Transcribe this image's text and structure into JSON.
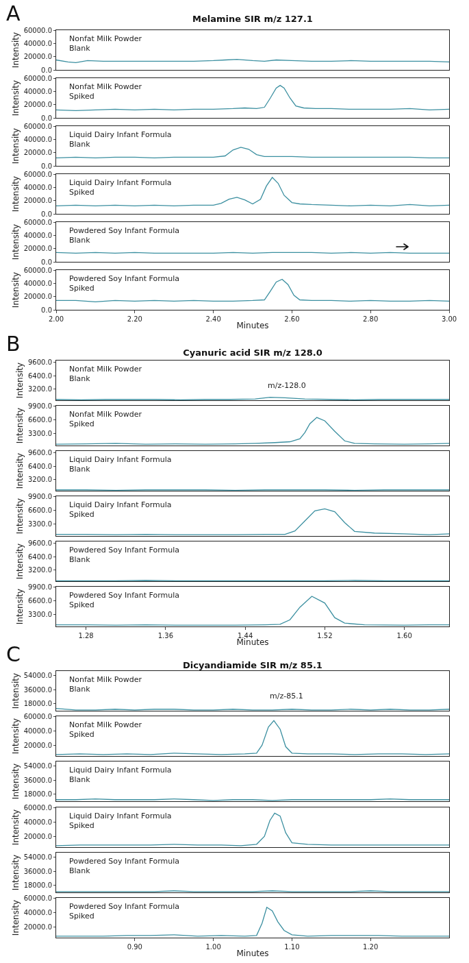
{
  "chart_data": [
    {
      "type": "line",
      "title": "Melamine SIR m/z 127.1",
      "ylabel": "Intensity",
      "annotations": [
        "A",
        "Nonfat Milk Powder\nBlank"
      ],
      "color": "#3b8fa0",
      "tick_labels": "y",
      "xlim": [
        2,
        3
      ],
      "ylim": [
        0,
        60000
      ],
      "yticks": [
        {
          "value": 0,
          "label": "0.0"
        },
        {
          "value": 20000,
          "label": "20000.0"
        },
        {
          "value": 40000,
          "label": "40000.0"
        },
        {
          "value": 60000,
          "label": "60000.0"
        }
      ],
      "x": [
        2.0,
        2.03,
        2.05,
        2.08,
        2.12,
        2.16,
        2.2,
        2.25,
        2.3,
        2.35,
        2.4,
        2.43,
        2.46,
        2.5,
        2.53,
        2.56,
        2.6,
        2.65,
        2.7,
        2.75,
        2.8,
        2.85,
        2.9,
        2.95,
        3.0
      ],
      "values": [
        15000,
        12000,
        11000,
        14000,
        13000,
        13000,
        13000,
        13000,
        13000,
        13000,
        14000,
        15000,
        16000,
        14000,
        13000,
        15000,
        14000,
        13000,
        13000,
        14000,
        13000,
        13000,
        13000,
        13000,
        12000
      ]
    },
    {
      "type": "line",
      "ylabel": "Intensity",
      "annotations": [
        "Nonfat Milk Powder\nSpiked"
      ],
      "color": "#3b8fa0",
      "tick_labels": "y",
      "xlim": [
        2,
        3
      ],
      "ylim": [
        0,
        60000
      ],
      "yticks": [
        {
          "value": 0,
          "label": "0.0"
        },
        {
          "value": 20000,
          "label": "20000.0"
        },
        {
          "value": 40000,
          "label": "40000.0"
        },
        {
          "value": 60000,
          "label": "60000.0"
        }
      ],
      "x": [
        2.0,
        2.05,
        2.1,
        2.15,
        2.2,
        2.25,
        2.3,
        2.35,
        2.4,
        2.45,
        2.48,
        2.51,
        2.53,
        2.545,
        2.56,
        2.57,
        2.58,
        2.595,
        2.61,
        2.63,
        2.66,
        2.7,
        2.75,
        2.8,
        2.85,
        2.9,
        2.95,
        3.0
      ],
      "values": [
        12000,
        11000,
        12000,
        13000,
        12000,
        13000,
        12000,
        13000,
        13000,
        14000,
        15000,
        14000,
        16000,
        30000,
        45000,
        49000,
        45000,
        30000,
        18000,
        15000,
        14000,
        14000,
        13000,
        13000,
        13000,
        14000,
        12000,
        13000
      ]
    },
    {
      "type": "line",
      "ylabel": "Intensity",
      "annotations": [
        "Liquid Dairy Infant Formula\nBlank"
      ],
      "color": "#3b8fa0",
      "tick_labels": "y",
      "xlim": [
        2,
        3
      ],
      "ylim": [
        0,
        60000
      ],
      "yticks": [
        {
          "value": 0,
          "label": "0.0"
        },
        {
          "value": 20000,
          "label": "20000.0"
        },
        {
          "value": 40000,
          "label": "40000.0"
        },
        {
          "value": 60000,
          "label": "60000.0"
        }
      ],
      "x": [
        2.0,
        2.05,
        2.1,
        2.15,
        2.2,
        2.25,
        2.3,
        2.35,
        2.4,
        2.43,
        2.45,
        2.47,
        2.49,
        2.51,
        2.53,
        2.56,
        2.6,
        2.65,
        2.7,
        2.75,
        2.8,
        2.85,
        2.9,
        2.95,
        3.0
      ],
      "values": [
        12000,
        13000,
        12000,
        13000,
        13000,
        12000,
        13000,
        13000,
        13000,
        15000,
        24000,
        28000,
        25000,
        17000,
        14000,
        14000,
        14000,
        13000,
        13000,
        13000,
        13000,
        13000,
        13000,
        12000,
        12000
      ]
    },
    {
      "type": "line",
      "ylabel": "Intensity",
      "annotations": [
        "Liquid Dairy Infant Formula\nSpiked"
      ],
      "color": "#3b8fa0",
      "tick_labels": "y",
      "xlim": [
        2,
        3
      ],
      "ylim": [
        0,
        60000
      ],
      "yticks": [
        {
          "value": 0,
          "label": "0.0"
        },
        {
          "value": 20000,
          "label": "20000.0"
        },
        {
          "value": 40000,
          "label": "40000.0"
        },
        {
          "value": 60000,
          "label": "60000.0"
        }
      ],
      "x": [
        2.0,
        2.05,
        2.1,
        2.15,
        2.2,
        2.25,
        2.3,
        2.35,
        2.4,
        2.42,
        2.44,
        2.46,
        2.48,
        2.5,
        2.52,
        2.535,
        2.55,
        2.565,
        2.58,
        2.6,
        2.62,
        2.65,
        2.7,
        2.75,
        2.8,
        2.85,
        2.9,
        2.95,
        3.0
      ],
      "values": [
        12000,
        13000,
        12000,
        13000,
        12000,
        13000,
        12000,
        13000,
        13000,
        16000,
        22000,
        25000,
        21000,
        15000,
        22000,
        42000,
        55000,
        46000,
        28000,
        17000,
        15000,
        14000,
        13000,
        12000,
        13000,
        12000,
        14000,
        12000,
        13000
      ]
    },
    {
      "type": "line",
      "ylabel": "Intensity",
      "annotations": [
        "Powdered Soy Infant Formula\nBlank"
      ],
      "color": "#3b8fa0",
      "tick_labels": "y",
      "xlim": [
        2,
        3
      ],
      "ylim": [
        0,
        60000
      ],
      "yticks": [
        {
          "value": 0,
          "label": "0.0"
        },
        {
          "value": 20000,
          "label": "20000.0"
        },
        {
          "value": 40000,
          "label": "40000.0"
        },
        {
          "value": 60000,
          "label": "60000.0"
        }
      ],
      "x": [
        2.0,
        2.05,
        2.1,
        2.15,
        2.2,
        2.25,
        2.3,
        2.35,
        2.4,
        2.45,
        2.5,
        2.55,
        2.6,
        2.65,
        2.7,
        2.75,
        2.8,
        2.85,
        2.9,
        2.95,
        3.0
      ],
      "values": [
        14000,
        13000,
        14000,
        13000,
        14000,
        13000,
        13000,
        13000,
        13000,
        14000,
        13000,
        14000,
        14000,
        14000,
        13000,
        14000,
        13000,
        14000,
        13000,
        13000,
        13000
      ]
    },
    {
      "type": "line",
      "xlabel": "Minutes",
      "ylabel": "Intensity",
      "annotations": [
        "Powdered Soy Infant Formula\nSpiked"
      ],
      "color": "#3b8fa0",
      "xlim": [
        2,
        3
      ],
      "xticks": [
        {
          "value": 2,
          "label": "2.00"
        },
        {
          "value": 2.2,
          "label": "2.20"
        },
        {
          "value": 2.4,
          "label": "2.40"
        },
        {
          "value": 2.6,
          "label": "2.60"
        },
        {
          "value": 2.8,
          "label": "2.80"
        },
        {
          "value": 3,
          "label": "3.00"
        }
      ],
      "ylim": [
        0,
        60000
      ],
      "yticks": [
        {
          "value": 0,
          "label": "0.0"
        },
        {
          "value": 20000,
          "label": "20000.0"
        },
        {
          "value": 40000,
          "label": "40000.0"
        },
        {
          "value": 60000,
          "label": "60000.0"
        }
      ],
      "x": [
        2.0,
        2.05,
        2.1,
        2.15,
        2.2,
        2.25,
        2.3,
        2.35,
        2.4,
        2.45,
        2.5,
        2.53,
        2.545,
        2.56,
        2.575,
        2.59,
        2.605,
        2.62,
        2.65,
        2.7,
        2.75,
        2.8,
        2.85,
        2.9,
        2.95,
        3.0
      ],
      "values": [
        14000,
        14000,
        12000,
        14000,
        13000,
        14000,
        13000,
        14000,
        13000,
        13000,
        14000,
        15000,
        28000,
        42000,
        46000,
        38000,
        22000,
        15000,
        14000,
        14000,
        13000,
        14000,
        13000,
        13000,
        14000,
        13000
      ]
    },
    {
      "type": "line",
      "title": "Cyanuric acid SIR m/z 128.0",
      "ylabel": "Intensity",
      "annotations": [
        "B",
        "Nonfat Milk Powder\nBlank",
        "m/z-128.0"
      ],
      "color": "#3b8fa0",
      "tick_labels": "y",
      "xlim": [
        1.25,
        1.645
      ],
      "ylim": [
        600,
        10000
      ],
      "yticks": [
        {
          "value": 3200,
          "label": "3200.0"
        },
        {
          "value": 6400,
          "label": "6400.0"
        },
        {
          "value": 9600,
          "label": "9600.0"
        }
      ],
      "x": [
        1.25,
        1.275,
        1.3,
        1.325,
        1.35,
        1.375,
        1.4,
        1.425,
        1.45,
        1.465,
        1.48,
        1.5,
        1.525,
        1.55,
        1.575,
        1.6,
        1.625,
        1.645
      ],
      "values": [
        800,
        700,
        800,
        800,
        800,
        700,
        800,
        800,
        900,
        1300,
        1200,
        900,
        800,
        700,
        800,
        800,
        800,
        800
      ]
    },
    {
      "type": "line",
      "ylabel": "Intensity",
      "annotations": [
        "Nonfat Milk Powder\nSpiked"
      ],
      "color": "#3b8fa0",
      "tick_labels": "y",
      "xlim": [
        1.25,
        1.645
      ],
      "ylim": [
        400,
        9900
      ],
      "yticks": [
        {
          "value": 3300,
          "label": "3300.0"
        },
        {
          "value": 6600,
          "label": "6600.0"
        },
        {
          "value": 9900,
          "label": "9900.0"
        }
      ],
      "x": [
        1.25,
        1.28,
        1.31,
        1.34,
        1.37,
        1.4,
        1.43,
        1.45,
        1.47,
        1.485,
        1.495,
        1.5,
        1.505,
        1.512,
        1.52,
        1.53,
        1.54,
        1.55,
        1.57,
        1.6,
        1.625,
        1.645
      ],
      "values": [
        700,
        800,
        900,
        700,
        800,
        700,
        800,
        900,
        1100,
        1300,
        2000,
        3500,
        5600,
        7100,
        6300,
        3800,
        1500,
        900,
        800,
        700,
        800,
        900
      ]
    },
    {
      "type": "line",
      "ylabel": "Intensity",
      "annotations": [
        "Liquid Dairy Infant Formula\nBlank"
      ],
      "color": "#3b8fa0",
      "tick_labels": "y",
      "xlim": [
        1.25,
        1.645
      ],
      "ylim": [
        600,
        10000
      ],
      "yticks": [
        {
          "value": 3200,
          "label": "3200.0"
        },
        {
          "value": 6400,
          "label": "6400.0"
        },
        {
          "value": 9600,
          "label": "9600.0"
        }
      ],
      "x": [
        1.25,
        1.28,
        1.31,
        1.34,
        1.37,
        1.4,
        1.43,
        1.46,
        1.49,
        1.52,
        1.55,
        1.58,
        1.61,
        1.645
      ],
      "values": [
        800,
        800,
        700,
        800,
        800,
        800,
        700,
        800,
        800,
        800,
        700,
        800,
        800,
        800
      ]
    },
    {
      "type": "line",
      "ylabel": "Intensity",
      "annotations": [
        "Liquid Dairy Infant Formula\nSpiked"
      ],
      "color": "#3b8fa0",
      "tick_labels": "y",
      "xlim": [
        1.25,
        1.645
      ],
      "ylim": [
        400,
        9900
      ],
      "yticks": [
        {
          "value": 3300,
          "label": "3300.0"
        },
        {
          "value": 6600,
          "label": "6600.0"
        },
        {
          "value": 9900,
          "label": "9900.0"
        }
      ],
      "x": [
        1.25,
        1.28,
        1.31,
        1.34,
        1.37,
        1.4,
        1.43,
        1.46,
        1.48,
        1.49,
        1.5,
        1.51,
        1.52,
        1.53,
        1.54,
        1.55,
        1.57,
        1.6,
        1.625,
        1.645
      ],
      "values": [
        800,
        800,
        700,
        800,
        700,
        700,
        700,
        800,
        800,
        1600,
        4000,
        6400,
        6900,
        6200,
        3600,
        1500,
        1100,
        900,
        700,
        900
      ]
    },
    {
      "type": "line",
      "ylabel": "Intensity",
      "annotations": [
        "Powdered Soy Infant Formula\nBlank"
      ],
      "color": "#3b8fa0",
      "tick_labels": "y",
      "xlim": [
        1.25,
        1.645
      ],
      "ylim": [
        600,
        10000
      ],
      "yticks": [
        {
          "value": 3200,
          "label": "3200.0"
        },
        {
          "value": 6400,
          "label": "6400.0"
        },
        {
          "value": 9600,
          "label": "9600.0"
        }
      ],
      "x": [
        1.25,
        1.28,
        1.31,
        1.34,
        1.37,
        1.4,
        1.43,
        1.46,
        1.49,
        1.52,
        1.55,
        1.58,
        1.61,
        1.645
      ],
      "values": [
        700,
        700,
        700,
        800,
        700,
        700,
        700,
        700,
        700,
        700,
        800,
        700,
        700,
        700
      ]
    },
    {
      "type": "line",
      "xlabel": "Minutes",
      "ylabel": "Intensity",
      "annotations": [
        "Powdered Soy Infant Formula\nSpiked"
      ],
      "color": "#3b8fa0",
      "xlim": [
        1.25,
        1.645
      ],
      "xticks": [
        {
          "value": 1.28,
          "label": "1.28"
        },
        {
          "value": 1.36,
          "label": "1.36"
        },
        {
          "value": 1.44,
          "label": "1.44"
        },
        {
          "value": 1.52,
          "label": "1.52"
        },
        {
          "value": 1.6,
          "label": "1.60"
        }
      ],
      "ylim": [
        400,
        9900
      ],
      "yticks": [
        {
          "value": 3300,
          "label": "3300.0"
        },
        {
          "value": 6600,
          "label": "6600.0"
        },
        {
          "value": 9900,
          "label": "9900.0"
        }
      ],
      "x": [
        1.25,
        1.28,
        1.31,
        1.34,
        1.37,
        1.4,
        1.43,
        1.46,
        1.475,
        1.485,
        1.495,
        1.507,
        1.52,
        1.53,
        1.54,
        1.56,
        1.6,
        1.625,
        1.645
      ],
      "values": [
        800,
        800,
        700,
        800,
        700,
        700,
        700,
        800,
        900,
        2000,
        5000,
        7600,
        6000,
        2500,
        1200,
        800,
        700,
        800,
        800
      ]
    },
    {
      "type": "line",
      "title": "Dicyandiamide SIR m/z 85.1",
      "ylabel": "Intensity",
      "annotations": [
        "C",
        "Nonfat Milk Powder\nBlank",
        "m/z-85.1"
      ],
      "color": "#3b8fa0",
      "tick_labels": "y",
      "xlim": [
        0.8,
        1.3
      ],
      "ylim": [
        9000,
        60000
      ],
      "yticks": [
        {
          "value": 18000,
          "label": "18000.0"
        },
        {
          "value": 36000,
          "label": "36000.0"
        },
        {
          "value": 54000,
          "label": "54000.0"
        }
      ],
      "x": [
        0.8,
        0.825,
        0.85,
        0.875,
        0.9,
        0.925,
        0.95,
        0.975,
        1.0,
        1.025,
        1.05,
        1.075,
        1.1,
        1.125,
        1.15,
        1.175,
        1.2,
        1.225,
        1.25,
        1.275,
        1.3
      ],
      "values": [
        12000,
        10000,
        10000,
        11000,
        10000,
        11000,
        11000,
        10000,
        10000,
        11000,
        10000,
        10000,
        11000,
        10000,
        10000,
        11000,
        10000,
        11000,
        10000,
        10000,
        11000
      ]
    },
    {
      "type": "line",
      "ylabel": "Intensity",
      "annotations": [
        "Nonfat Milk Powder\nSpiked"
      ],
      "color": "#3b8fa0",
      "tick_labels": "y",
      "xlim": [
        0.8,
        1.3
      ],
      "ylim": [
        5000,
        60000
      ],
      "yticks": [
        {
          "value": 20000,
          "label": "20000.0"
        },
        {
          "value": 40000,
          "label": "40000.0"
        },
        {
          "value": 60000,
          "label": "60000.0"
        }
      ],
      "x": [
        0.8,
        0.83,
        0.86,
        0.89,
        0.92,
        0.95,
        0.98,
        1.01,
        1.04,
        1.055,
        1.062,
        1.07,
        1.077,
        1.085,
        1.092,
        1.1,
        1.12,
        1.15,
        1.18,
        1.21,
        1.24,
        1.27,
        1.3
      ],
      "values": [
        7000,
        8000,
        7000,
        8000,
        7000,
        9000,
        8000,
        7000,
        8000,
        9000,
        20000,
        45000,
        54000,
        42000,
        18000,
        9000,
        8000,
        8000,
        7000,
        8000,
        8000,
        7000,
        8000
      ]
    },
    {
      "type": "line",
      "ylabel": "Intensity",
      "annotations": [
        "Liquid Dairy Infant Formula\nBlank"
      ],
      "color": "#3b8fa0",
      "tick_labels": "y",
      "xlim": [
        0.8,
        1.3
      ],
      "ylim": [
        9000,
        60000
      ],
      "yticks": [
        {
          "value": 18000,
          "label": "18000.0"
        },
        {
          "value": 36000,
          "label": "36000.0"
        },
        {
          "value": 54000,
          "label": "54000.0"
        }
      ],
      "x": [
        0.8,
        0.825,
        0.85,
        0.875,
        0.9,
        0.925,
        0.95,
        0.975,
        1.0,
        1.025,
        1.05,
        1.075,
        1.1,
        1.125,
        1.15,
        1.175,
        1.2,
        1.225,
        1.25,
        1.275,
        1.3
      ],
      "values": [
        11000,
        11000,
        12000,
        11000,
        11000,
        11000,
        12000,
        11000,
        10000,
        11000,
        11000,
        10000,
        11000,
        11000,
        11000,
        11000,
        11000,
        12000,
        11000,
        11000,
        11000
      ]
    },
    {
      "type": "line",
      "ylabel": "Intensity",
      "annotations": [
        "Liquid Dairy Infant Formula\nSpiked"
      ],
      "color": "#3b8fa0",
      "tick_labels": "y",
      "xlim": [
        0.8,
        1.3
      ],
      "ylim": [
        5000,
        60000
      ],
      "yticks": [
        {
          "value": 20000,
          "label": "20000.0"
        },
        {
          "value": 40000,
          "label": "40000.0"
        },
        {
          "value": 60000,
          "label": "60000.0"
        }
      ],
      "x": [
        0.8,
        0.83,
        0.86,
        0.89,
        0.92,
        0.95,
        0.98,
        1.01,
        1.035,
        1.055,
        1.065,
        1.072,
        1.078,
        1.085,
        1.092,
        1.1,
        1.12,
        1.15,
        1.18,
        1.21,
        1.24,
        1.27,
        1.3
      ],
      "values": [
        7000,
        8000,
        8000,
        8000,
        8000,
        9000,
        8000,
        8000,
        7000,
        9000,
        20000,
        42000,
        52000,
        48000,
        25000,
        11000,
        9000,
        8000,
        8000,
        8000,
        8000,
        8000,
        8000
      ]
    },
    {
      "type": "line",
      "ylabel": "Intensity",
      "annotations": [
        "Powdered Soy Infant Formula\nBlank"
      ],
      "color": "#3b8fa0",
      "tick_labels": "y",
      "xlim": [
        0.8,
        1.3
      ],
      "ylim": [
        9000,
        60000
      ],
      "yticks": [
        {
          "value": 18000,
          "label": "18000.0"
        },
        {
          "value": 36000,
          "label": "36000.0"
        },
        {
          "value": 54000,
          "label": "54000.0"
        }
      ],
      "x": [
        0.8,
        0.825,
        0.85,
        0.875,
        0.9,
        0.925,
        0.95,
        0.975,
        1.0,
        1.025,
        1.05,
        1.075,
        1.1,
        1.125,
        1.15,
        1.175,
        1.2,
        1.225,
        1.25,
        1.275,
        1.3
      ],
      "values": [
        10000,
        10000,
        10000,
        10000,
        10000,
        10000,
        11000,
        10000,
        10000,
        10000,
        10000,
        11000,
        10000,
        10000,
        10000,
        10000,
        11000,
        10000,
        10000,
        10000,
        10000
      ]
    },
    {
      "type": "line",
      "xlabel": "Minutes",
      "ylabel": "Intensity",
      "annotations": [
        "Powdered Soy Infant Formula\nSpiked"
      ],
      "color": "#3b8fa0",
      "xlim": [
        0.8,
        1.3
      ],
      "xticks": [
        {
          "value": 0.9,
          "label": "0.90"
        },
        {
          "value": 1,
          "label": "1.00"
        },
        {
          "value": 1.1,
          "label": "1.10"
        },
        {
          "value": 1.2,
          "label": "1.20"
        }
      ],
      "ylim": [
        5000,
        60000
      ],
      "yticks": [
        {
          "value": 20000,
          "label": "20000.0"
        },
        {
          "value": 40000,
          "label": "40000.0"
        },
        {
          "value": 60000,
          "label": "60000.0"
        }
      ],
      "x": [
        0.8,
        0.83,
        0.86,
        0.89,
        0.92,
        0.95,
        0.98,
        1.01,
        1.04,
        1.055,
        1.062,
        1.068,
        1.075,
        1.082,
        1.09,
        1.1,
        1.12,
        1.15,
        1.18,
        1.21,
        1.24,
        1.27,
        1.3
      ],
      "values": [
        7000,
        7000,
        7000,
        8000,
        8000,
        9000,
        7000,
        8000,
        7000,
        8000,
        25000,
        47000,
        42000,
        27000,
        15000,
        9000,
        7000,
        8000,
        8000,
        8000,
        7000,
        7000,
        7000
      ]
    }
  ]
}
